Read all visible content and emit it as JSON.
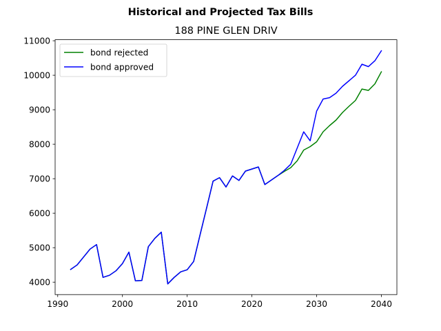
{
  "chart_data": {
    "type": "line",
    "title": "Historical and Projected Tax Bills",
    "subtitle": "188 PINE GLEN DRIV",
    "xlabel": "",
    "ylabel": "",
    "xlim": [
      1989.6,
      2042.4
    ],
    "ylim": [
      3640,
      11030
    ],
    "xticks": [
      1990,
      2000,
      2010,
      2020,
      2030,
      2040
    ],
    "yticks": [
      4000,
      5000,
      6000,
      7000,
      8000,
      9000,
      10000,
      11000
    ],
    "grid": false,
    "legend_position": "top-left",
    "series": [
      {
        "name": "bond rejected",
        "color": "#008000",
        "x": [
          1992,
          1993,
          1994,
          1995,
          1996,
          1997,
          1998,
          1999,
          2000,
          2001,
          2002,
          2003,
          2004,
          2005,
          2006,
          2007,
          2008,
          2009,
          2010,
          2011,
          2012,
          2013,
          2014,
          2015,
          2016,
          2017,
          2018,
          2019,
          2020,
          2021,
          2022,
          2023,
          2024,
          2025,
          2026,
          2027,
          2028,
          2029,
          2030,
          2031,
          2032,
          2033,
          2034,
          2035,
          2036,
          2037,
          2038,
          2039,
          2040
        ],
        "values": [
          4370,
          4500,
          4730,
          4960,
          5090,
          4140,
          4200,
          4330,
          4540,
          4870,
          4040,
          4050,
          5030,
          5270,
          5450,
          3950,
          4140,
          4300,
          4360,
          4600,
          5380,
          6150,
          6930,
          7030,
          6760,
          7080,
          6950,
          7220,
          7280,
          7340,
          6830,
          6960,
          7090,
          7210,
          7320,
          7520,
          7830,
          7930,
          8070,
          8360,
          8540,
          8700,
          8920,
          9100,
          9270,
          9600,
          9560,
          9750,
          10100
        ]
      },
      {
        "name": "bond approved",
        "color": "#0000ff",
        "x": [
          1992,
          1993,
          1994,
          1995,
          1996,
          1997,
          1998,
          1999,
          2000,
          2001,
          2002,
          2003,
          2004,
          2005,
          2006,
          2007,
          2008,
          2009,
          2010,
          2011,
          2012,
          2013,
          2014,
          2015,
          2016,
          2017,
          2018,
          2019,
          2020,
          2021,
          2022,
          2023,
          2024,
          2025,
          2026,
          2027,
          2028,
          2029,
          2030,
          2031,
          2032,
          2033,
          2034,
          2035,
          2036,
          2037,
          2038,
          2039,
          2040
        ],
        "values": [
          4370,
          4500,
          4730,
          4960,
          5090,
          4140,
          4200,
          4330,
          4540,
          4870,
          4040,
          4050,
          5030,
          5270,
          5450,
          3950,
          4140,
          4300,
          4360,
          4600,
          5380,
          6150,
          6930,
          7030,
          6760,
          7080,
          6950,
          7220,
          7280,
          7340,
          6830,
          6960,
          7090,
          7240,
          7420,
          7890,
          8360,
          8100,
          8960,
          9310,
          9350,
          9480,
          9680,
          9840,
          10000,
          10320,
          10250,
          10420,
          10710
        ]
      }
    ]
  }
}
